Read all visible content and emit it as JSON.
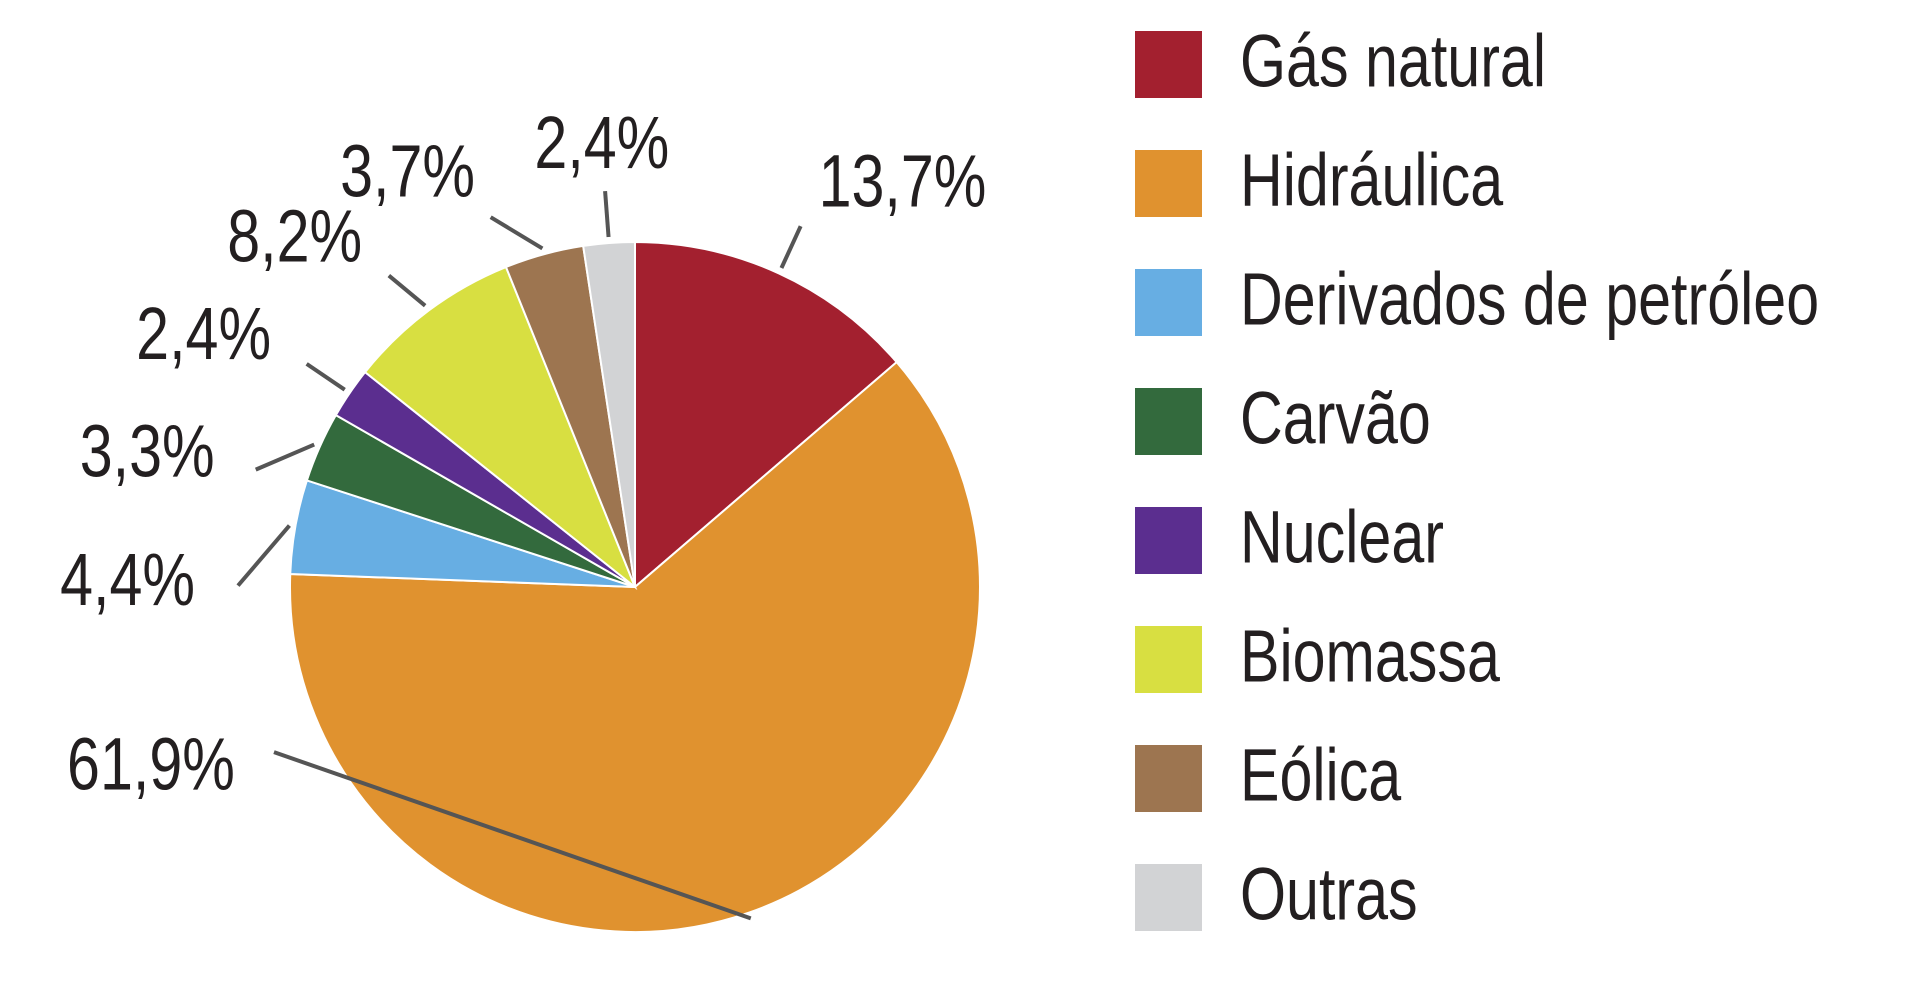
{
  "chart_data": {
    "type": "pie",
    "categories": [
      "Gás natural",
      "Hidráulica",
      "Derivados de petróleo",
      "Carvão",
      "Nuclear",
      "Biomassa",
      "Eólica",
      "Outras"
    ],
    "values": [
      13.7,
      61.9,
      4.4,
      3.3,
      2.4,
      8.2,
      3.7,
      2.4
    ],
    "value_labels": [
      "13,7%",
      "61,9%",
      "4,4%",
      "3,3%",
      "2,4%",
      "8,2%",
      "3,7%",
      "2,4%"
    ],
    "colors": [
      "#a3202f",
      "#e0922f",
      "#67aee3",
      "#336a3d",
      "#5b2e8f",
      "#d8df41",
      "#9d7550",
      "#d2d3d5"
    ],
    "legend": "right"
  }
}
